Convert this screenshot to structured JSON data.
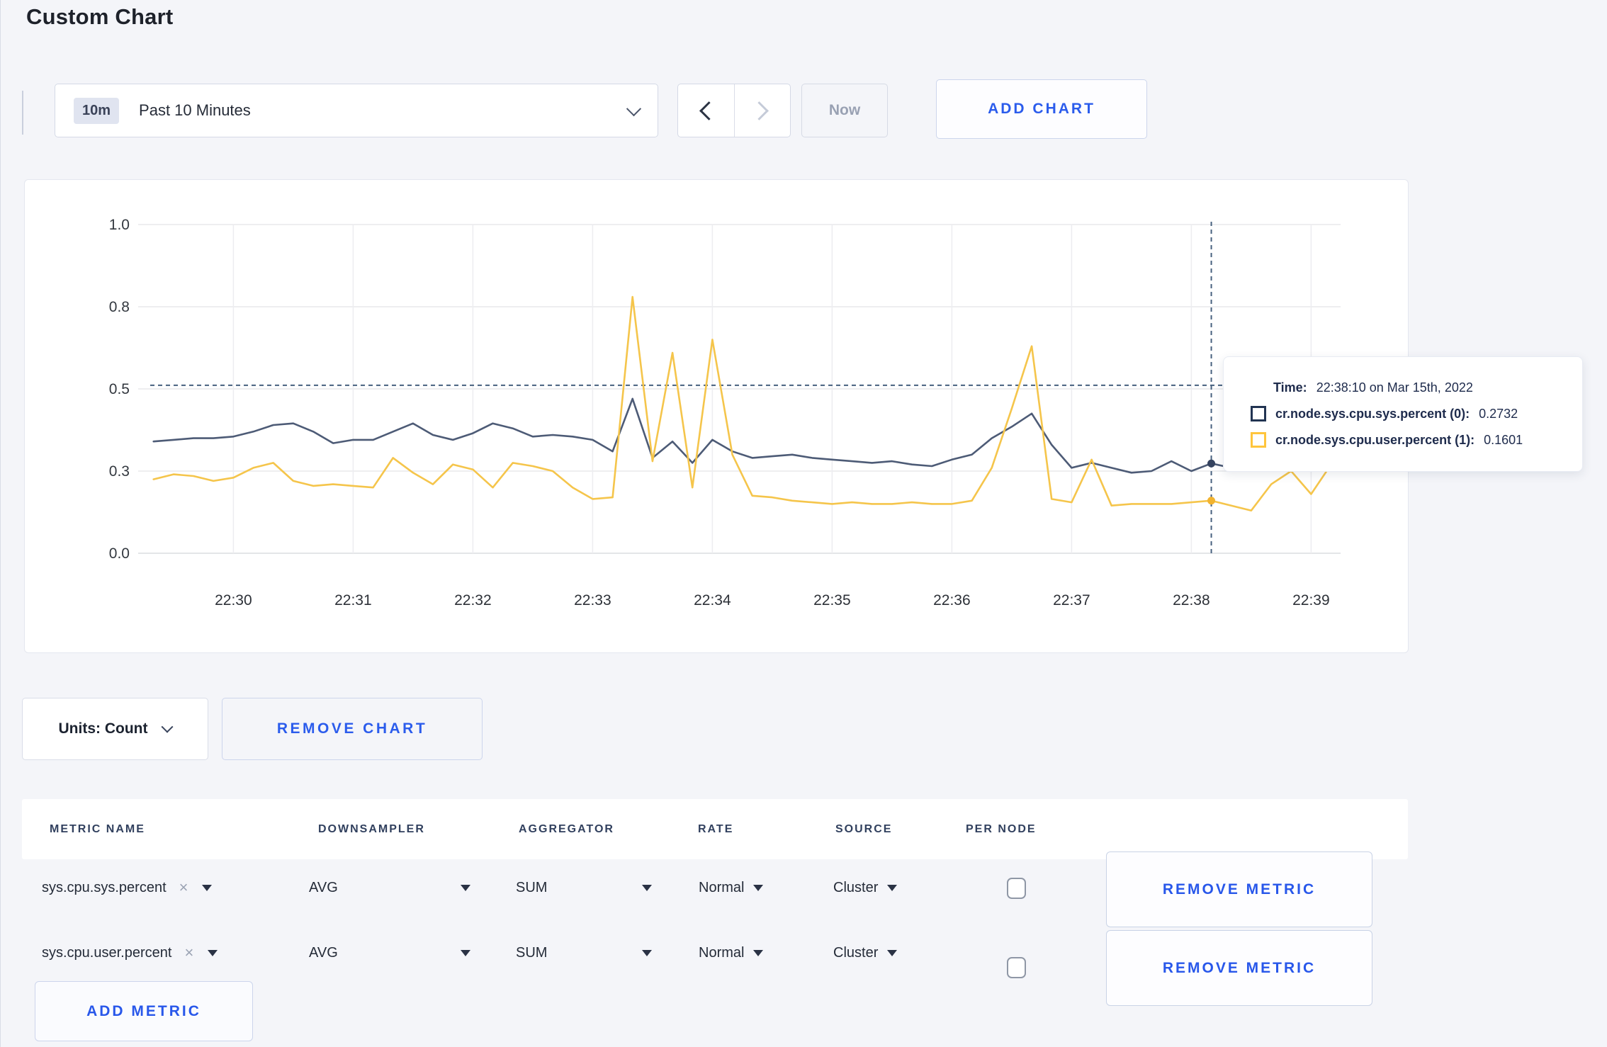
{
  "page": {
    "title": "Custom Chart"
  },
  "toolbar": {
    "time_range_badge": "10m",
    "time_range_label": "Past 10 Minutes",
    "now_label": "Now",
    "add_chart_label": "ADD CHART"
  },
  "chart_data": {
    "type": "line",
    "title": "",
    "xlabel": "",
    "ylabel": "",
    "ylim": [
      0,
      1
    ],
    "grid": true,
    "x_start_time": "22:29:20",
    "x_interval_seconds": 10,
    "x_tick_labels": [
      "22:30",
      "22:31",
      "22:32",
      "22:33",
      "22:34",
      "22:35",
      "22:36",
      "22:37",
      "22:38",
      "22:39"
    ],
    "x_tick_indices": [
      4,
      10,
      16,
      22,
      28,
      34,
      40,
      46,
      52,
      58
    ],
    "y_tick_values": [
      0,
      0.25,
      0.5,
      0.75,
      1.0
    ],
    "y_tick_labels": [
      "0.0",
      "0.3",
      "0.5",
      "0.8",
      "1.0"
    ],
    "series": [
      {
        "name": "cr.node.sys.cpu.sys.percent (0)",
        "color": "#4d5b76",
        "values": [
          0.34,
          0.345,
          0.35,
          0.35,
          0.355,
          0.37,
          0.39,
          0.395,
          0.37,
          0.335,
          0.345,
          0.345,
          0.37,
          0.395,
          0.36,
          0.345,
          0.365,
          0.395,
          0.38,
          0.355,
          0.36,
          0.355,
          0.345,
          0.31,
          0.47,
          0.29,
          0.34,
          0.275,
          0.345,
          0.31,
          0.29,
          0.295,
          0.3,
          0.29,
          0.285,
          0.28,
          0.275,
          0.28,
          0.27,
          0.265,
          0.285,
          0.3,
          0.35,
          0.385,
          0.425,
          0.33,
          0.26,
          0.275,
          0.26,
          0.245,
          0.25,
          0.28,
          0.25,
          0.2732,
          0.26,
          0.285,
          0.3,
          0.29,
          0.3,
          0.31
        ]
      },
      {
        "name": "cr.node.sys.cpu.user.percent (1)",
        "color": "#f5c54b",
        "values": [
          0.225,
          0.24,
          0.235,
          0.22,
          0.23,
          0.26,
          0.275,
          0.22,
          0.205,
          0.21,
          0.205,
          0.2,
          0.29,
          0.245,
          0.21,
          0.27,
          0.255,
          0.2,
          0.275,
          0.265,
          0.25,
          0.2,
          0.165,
          0.17,
          0.78,
          0.28,
          0.61,
          0.2,
          0.65,
          0.3,
          0.175,
          0.17,
          0.16,
          0.155,
          0.15,
          0.155,
          0.15,
          0.15,
          0.155,
          0.15,
          0.15,
          0.16,
          0.26,
          0.44,
          0.63,
          0.165,
          0.155,
          0.285,
          0.145,
          0.15,
          0.15,
          0.15,
          0.155,
          0.1601,
          0.145,
          0.13,
          0.21,
          0.25,
          0.18,
          0.27
        ]
      }
    ],
    "crosshair": {
      "index": 53,
      "time_label": "22:38:10",
      "y_value": 0.511
    },
    "legend_position": "tooltip"
  },
  "tooltip": {
    "time_label": "Time:",
    "time_value": "22:38:10 on Mar 15th, 2022",
    "series": [
      {
        "label": "cr.node.sys.cpu.sys.percent (0):",
        "value": "0.2732",
        "swatch_color": "#223452"
      },
      {
        "label": "cr.node.sys.cpu.user.percent (1):",
        "value": "0.1601",
        "swatch_color": "#ffc53d"
      }
    ]
  },
  "chart_controls": {
    "units_label": "Units: Count",
    "remove_chart_label": "REMOVE CHART"
  },
  "metrics_table": {
    "headers": [
      "METRIC NAME",
      "DOWNSAMPLER",
      "AGGREGATOR",
      "RATE",
      "SOURCE",
      "PER NODE"
    ],
    "clear_icon": "×",
    "rows": [
      {
        "metric_name": "sys.cpu.sys.percent",
        "downsampler": "AVG",
        "aggregator": "SUM",
        "rate": "Normal",
        "source": "Cluster",
        "per_node_checked": false,
        "remove_label": "REMOVE METRIC"
      },
      {
        "metric_name": "sys.cpu.user.percent",
        "downsampler": "AVG",
        "aggregator": "SUM",
        "rate": "Normal",
        "source": "Cluster",
        "per_node_checked": false,
        "remove_label": "REMOVE METRIC"
      }
    ],
    "add_metric_label": "ADD METRIC"
  }
}
